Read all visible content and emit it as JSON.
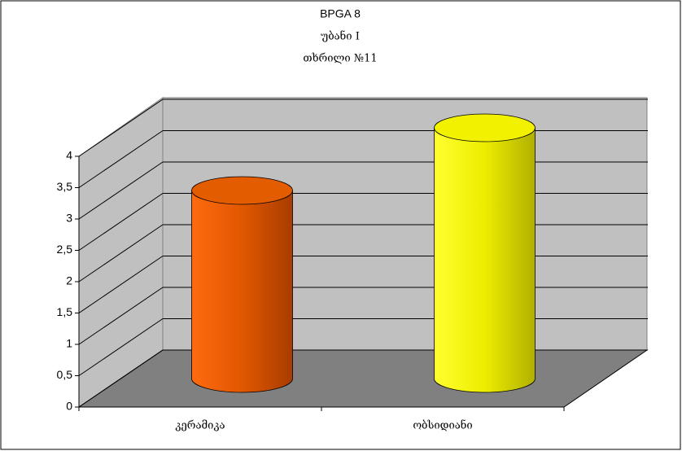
{
  "chart_data": {
    "type": "bar3d",
    "title": "BPGA 8",
    "subtitles": [
      "უბანი I",
      "თხრილი №11"
    ],
    "categories": [
      "კერამიკა",
      "ობსიდიანი"
    ],
    "values": [
      3,
      4
    ],
    "colors": [
      "#e45c00",
      "#f2f200"
    ],
    "ylim": [
      0,
      4
    ],
    "yticks": [
      0,
      {
        "value": 0.5,
        "label": "0,5"
      },
      1,
      {
        "value": 1.5,
        "label": "1,5"
      },
      2,
      {
        "value": 2.5,
        "label": "2,5"
      },
      3,
      {
        "value": 3.5,
        "label": "3,5"
      },
      4
    ],
    "grid": true
  }
}
